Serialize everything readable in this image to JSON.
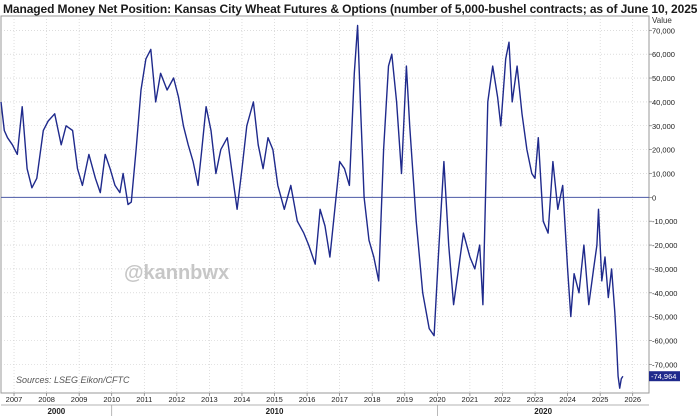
{
  "chart_data": {
    "type": "line",
    "title": "Managed Money Net Position: Kansas City Wheat Futures & Options (number of 5,000-bushel contracts; as of June 10, 2025",
    "y_axis_title": "Value",
    "source": "Sources: LSEG Eikon/CFTC",
    "watermark": "@kannbwx",
    "last_value_label": "-74,964",
    "last_value": -74964,
    "ylim": [
      -82000,
      76000
    ],
    "y_ticks": [
      70000,
      60000,
      50000,
      40000,
      30000,
      20000,
      10000,
      0,
      -10000,
      -20000,
      -30000,
      -40000,
      -50000,
      -60000,
      -70000
    ],
    "y_tick_labels": [
      "70,000",
      "60,000",
      "50,000",
      "40,000",
      "30,000",
      "20,000",
      "10,000",
      "0",
      "-10,000",
      "-20,000",
      "-30,000",
      "-40,000",
      "-50,000",
      "-60,000",
      "-70,000"
    ],
    "xlim": [
      2006.6,
      2026.5
    ],
    "x_ticks": [
      2007,
      2008,
      2009,
      2010,
      2011,
      2012,
      2013,
      2014,
      2015,
      2016,
      2017,
      2018,
      2019,
      2020,
      2021,
      2022,
      2023,
      2024,
      2025,
      2026
    ],
    "decade_labels": [
      {
        "year": 2000,
        "label": "2000"
      },
      {
        "year": 2010,
        "label": "2010"
      },
      {
        "year": 2020,
        "label": "2020"
      }
    ],
    "grid": true,
    "colors": {
      "line": "#1f2a8c",
      "zero_line": "#4c5aa6",
      "grid": "#c8c8c8",
      "last_value_bg": "#1f2a8c"
    },
    "series": [
      {
        "points": [
          [
            2006.6,
            40000
          ],
          [
            2006.7,
            28000
          ],
          [
            2006.8,
            25000
          ],
          [
            2006.95,
            22000
          ],
          [
            2007.1,
            18000
          ],
          [
            2007.25,
            38000
          ],
          [
            2007.4,
            12000
          ],
          [
            2007.55,
            4000
          ],
          [
            2007.7,
            8000
          ],
          [
            2007.9,
            28000
          ],
          [
            2008.05,
            32000
          ],
          [
            2008.25,
            35000
          ],
          [
            2008.45,
            22000
          ],
          [
            2008.6,
            30000
          ],
          [
            2008.8,
            28000
          ],
          [
            2008.95,
            12000
          ],
          [
            2009.1,
            5000
          ],
          [
            2009.3,
            18000
          ],
          [
            2009.5,
            8000
          ],
          [
            2009.65,
            2000
          ],
          [
            2009.8,
            18000
          ],
          [
            2009.95,
            12000
          ],
          [
            2010.1,
            5000
          ],
          [
            2010.25,
            2000
          ],
          [
            2010.35,
            10000
          ],
          [
            2010.5,
            -3000
          ],
          [
            2010.6,
            -2000
          ],
          [
            2010.75,
            20000
          ],
          [
            2010.9,
            45000
          ],
          [
            2011.05,
            58000
          ],
          [
            2011.2,
            62000
          ],
          [
            2011.35,
            40000
          ],
          [
            2011.5,
            52000
          ],
          [
            2011.7,
            45000
          ],
          [
            2011.9,
            50000
          ],
          [
            2012.05,
            42000
          ],
          [
            2012.2,
            30000
          ],
          [
            2012.35,
            22000
          ],
          [
            2012.5,
            15000
          ],
          [
            2012.65,
            5000
          ],
          [
            2012.75,
            18000
          ],
          [
            2012.9,
            38000
          ],
          [
            2013.05,
            28000
          ],
          [
            2013.2,
            10000
          ],
          [
            2013.35,
            20000
          ],
          [
            2013.55,
            25000
          ],
          [
            2013.7,
            10000
          ],
          [
            2013.85,
            -5000
          ],
          [
            2014.0,
            12000
          ],
          [
            2014.15,
            30000
          ],
          [
            2014.35,
            40000
          ],
          [
            2014.5,
            22000
          ],
          [
            2014.65,
            12000
          ],
          [
            2014.8,
            25000
          ],
          [
            2014.95,
            20000
          ],
          [
            2015.1,
            5000
          ],
          [
            2015.3,
            -5000
          ],
          [
            2015.5,
            5000
          ],
          [
            2015.7,
            -10000
          ],
          [
            2015.9,
            -15000
          ],
          [
            2016.05,
            -20000
          ],
          [
            2016.25,
            -28000
          ],
          [
            2016.4,
            -5000
          ],
          [
            2016.55,
            -12000
          ],
          [
            2016.7,
            -25000
          ],
          [
            2016.85,
            -5000
          ],
          [
            2017.0,
            15000
          ],
          [
            2017.15,
            12000
          ],
          [
            2017.3,
            5000
          ],
          [
            2017.45,
            52000
          ],
          [
            2017.55,
            72000
          ],
          [
            2017.65,
            35000
          ],
          [
            2017.75,
            0
          ],
          [
            2017.9,
            -18000
          ],
          [
            2018.05,
            -25000
          ],
          [
            2018.2,
            -35000
          ],
          [
            2018.35,
            20000
          ],
          [
            2018.5,
            55000
          ],
          [
            2018.6,
            60000
          ],
          [
            2018.75,
            40000
          ],
          [
            2018.9,
            10000
          ],
          [
            2019.05,
            55000
          ],
          [
            2019.15,
            30000
          ],
          [
            2019.35,
            -10000
          ],
          [
            2019.55,
            -40000
          ],
          [
            2019.75,
            -55000
          ],
          [
            2019.9,
            -58000
          ],
          [
            2020.05,
            -20000
          ],
          [
            2020.2,
            15000
          ],
          [
            2020.35,
            -20000
          ],
          [
            2020.5,
            -45000
          ],
          [
            2020.65,
            -30000
          ],
          [
            2020.8,
            -15000
          ],
          [
            2021.0,
            -25000
          ],
          [
            2021.15,
            -30000
          ],
          [
            2021.3,
            -20000
          ],
          [
            2021.4,
            -45000
          ],
          [
            2021.55,
            40000
          ],
          [
            2021.7,
            55000
          ],
          [
            2021.85,
            42000
          ],
          [
            2021.95,
            30000
          ],
          [
            2022.1,
            58000
          ],
          [
            2022.2,
            65000
          ],
          [
            2022.3,
            40000
          ],
          [
            2022.45,
            55000
          ],
          [
            2022.6,
            35000
          ],
          [
            2022.75,
            20000
          ],
          [
            2022.9,
            10000
          ],
          [
            2023.0,
            8000
          ],
          [
            2023.1,
            25000
          ],
          [
            2023.25,
            -10000
          ],
          [
            2023.4,
            -15000
          ],
          [
            2023.55,
            15000
          ],
          [
            2023.7,
            -5000
          ],
          [
            2023.85,
            5000
          ],
          [
            2024.0,
            -30000
          ],
          [
            2024.1,
            -50000
          ],
          [
            2024.2,
            -32000
          ],
          [
            2024.35,
            -40000
          ],
          [
            2024.5,
            -20000
          ],
          [
            2024.65,
            -45000
          ],
          [
            2024.8,
            -30000
          ],
          [
            2024.9,
            -20000
          ],
          [
            2024.95,
            -5000
          ],
          [
            2025.05,
            -35000
          ],
          [
            2025.15,
            -25000
          ],
          [
            2025.25,
            -42000
          ],
          [
            2025.35,
            -30000
          ],
          [
            2025.45,
            -48000
          ],
          [
            2025.5,
            -60000
          ],
          [
            2025.55,
            -75000
          ],
          [
            2025.6,
            -80000
          ],
          [
            2025.65,
            -76000
          ],
          [
            2025.7,
            -74964
          ]
        ]
      }
    ]
  }
}
